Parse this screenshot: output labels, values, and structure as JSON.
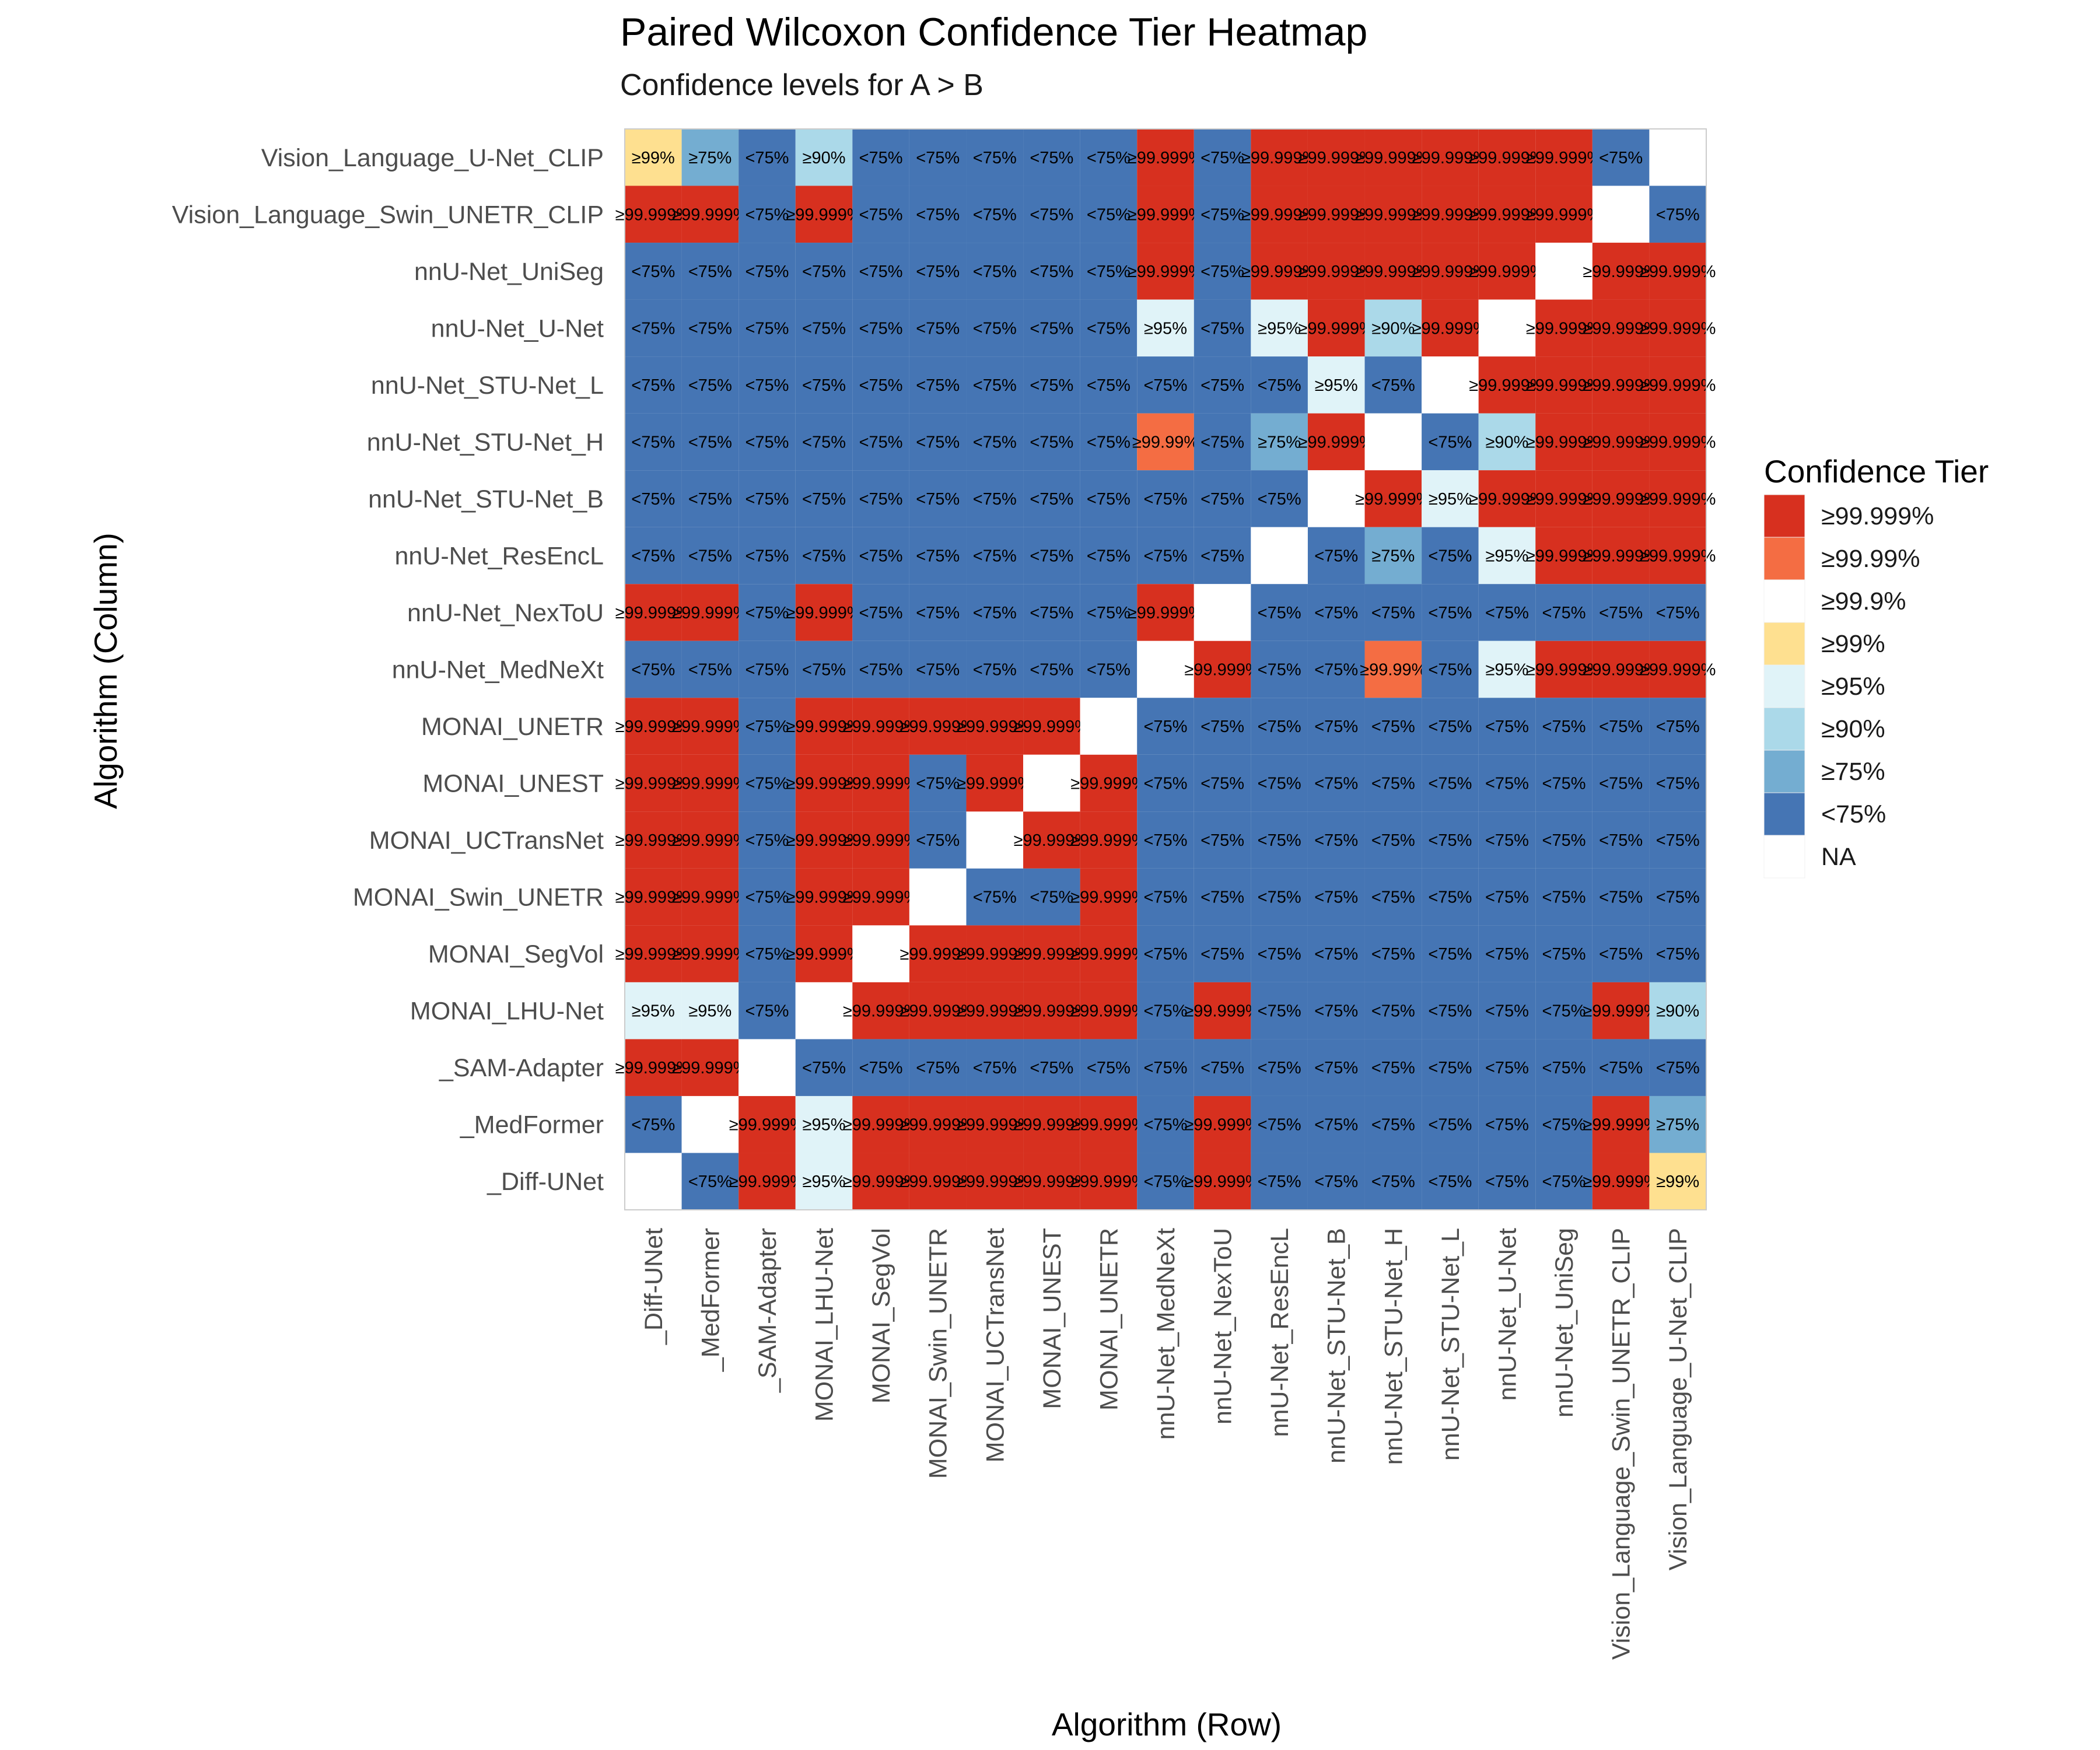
{
  "chart_data": {
    "type": "heatmap",
    "title": "Paired Wilcoxon Confidence Tier Heatmap",
    "subtitle": "Confidence levels for A > B",
    "xlabel": "Algorithm (Row)",
    "ylabel": "Algorithm (Column)",
    "x_categories": [
      "_Diff-UNet",
      "_MedFormer",
      "_SAM-Adapter",
      "MONAI_LHU-Net",
      "MONAI_SegVol",
      "MONAI_Swin_UNETR",
      "MONAI_UCTransNet",
      "MONAI_UNEST",
      "MONAI_UNETR",
      "nnU-Net_MedNeXt",
      "nnU-Net_NexToU",
      "nnU-Net_ResEncL",
      "nnU-Net_STU-Net_B",
      "nnU-Net_STU-Net_H",
      "nnU-Net_STU-Net_L",
      "nnU-Net_U-Net",
      "nnU-Net_UniSeg",
      "Vision_Language_Swin_UNETR_CLIP",
      "Vision_Language_U-Net_CLIP"
    ],
    "y_categories": [
      "Vision_Language_U-Net_CLIP",
      "Vision_Language_Swin_UNETR_CLIP",
      "nnU-Net_UniSeg",
      "nnU-Net_U-Net",
      "nnU-Net_STU-Net_L",
      "nnU-Net_STU-Net_H",
      "nnU-Net_STU-Net_B",
      "nnU-Net_ResEncL",
      "nnU-Net_NexToU",
      "nnU-Net_MedNeXt",
      "MONAI_UNETR",
      "MONAI_UNEST",
      "MONAI_UCTransNet",
      "MONAI_Swin_UNETR",
      "MONAI_SegVol",
      "MONAI_LHU-Net",
      "_SAM-Adapter",
      "_MedFormer",
      "_Diff-UNet"
    ],
    "tier_codes": {
      "A": "≥99.999%",
      "C": "≥99.99%",
      "D": "≥99.9%",
      "E": "≥99%",
      "F": "≥95%",
      "G": "≥90%",
      "H": "≥75%",
      "L": "<75%",
      "N": "NA"
    },
    "cells": [
      "EHLGLLLLLALAAAAAALN",
      "AALALLLLLALAAAAAANL",
      "LLLLLLLLLALAAAAANAA",
      "LLLLLLLLLFLFAGANAAA",
      "LLLLLLLLLLLLFLNAAAA",
      "LLLLLLLLLCLHANLGAAA",
      "LLLLLLLLLLLLNAFAAAA",
      "LLLLLLLLLLLNLHLFAAA",
      "AALALLLLLANLLLLLLLL",
      "LLLLLLLLLNALLCLFAAA",
      "AALAAAAANLLLLLLLLLL",
      "AALAALANALLLLLLLLLL",
      "AALAALNAALLLLLLLLLL",
      "AALAANLLALLLLLLLLLL",
      "AALANAAAALLLLLLLLLL",
      "FFLNAAAAALALLLLLLAG",
      "AANLLLLLLLLLLLLLLLL",
      "LNAFAAAAALALLLLLLAH",
      "NLAFAAAAALALLLLLLAE"
    ],
    "legend_title": "Confidence Tier",
    "legend": [
      {
        "label": "≥99.999%",
        "color": "#d7301f"
      },
      {
        "label": "≥99.99%",
        "color": "#f46d43"
      },
      {
        "label": "≥99.9%",
        "color": "#ffffff"
      },
      {
        "label": "≥99%",
        "color": "#fee090"
      },
      {
        "label": "≥95%",
        "color": "#e0f3f8"
      },
      {
        "label": "≥90%",
        "color": "#abd9e9"
      },
      {
        "label": "≥75%",
        "color": "#74add1"
      },
      {
        "label": "<75%",
        "color": "#4575b4"
      },
      {
        "label": "NA",
        "color": "#ffffff"
      }
    ],
    "legend_placement": "right",
    "grid": false
  }
}
